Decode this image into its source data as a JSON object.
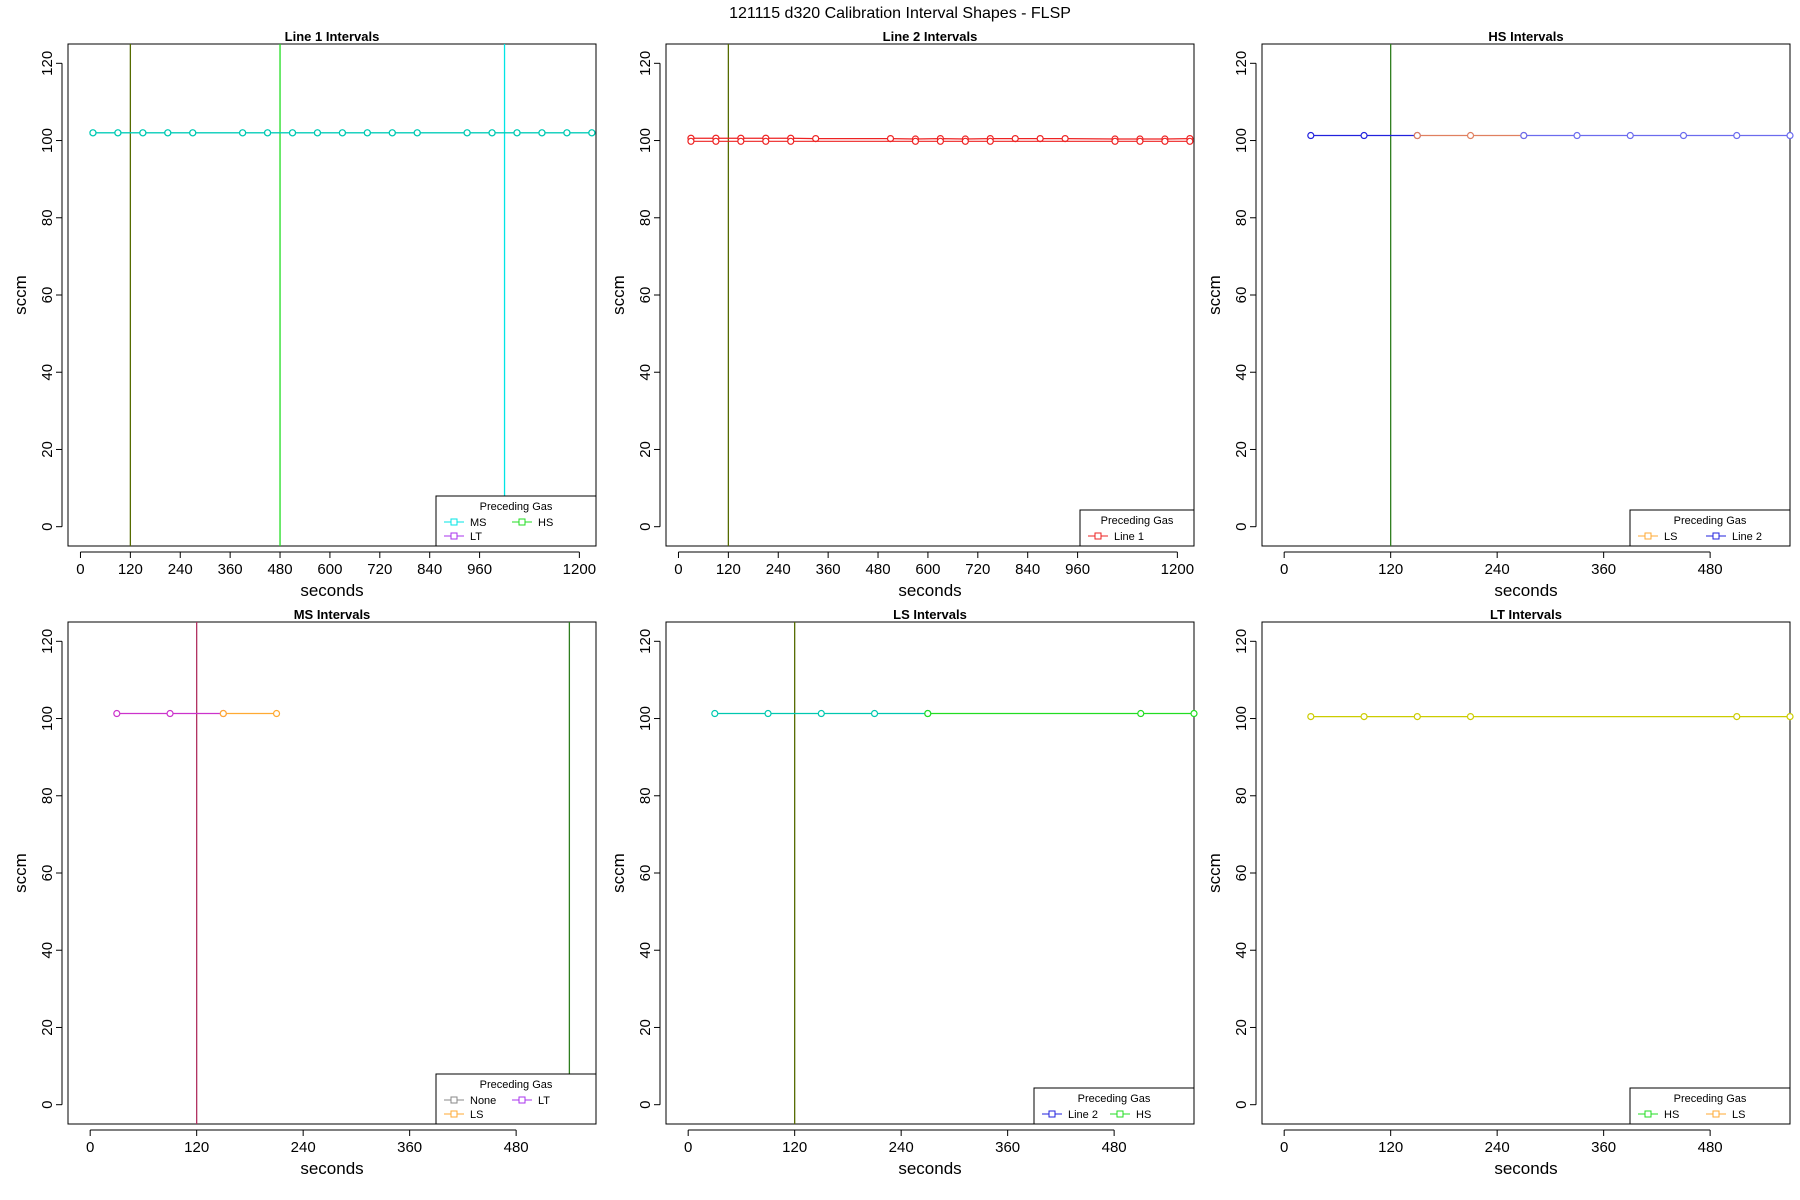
{
  "figure_title": "121115   d320   Calibration Interval Shapes - FLSP",
  "colors": {
    "cyan": "#00e5e5",
    "teal": "#00c8b0",
    "green": "#22dd22",
    "dkgreen": "#2e7d1e",
    "olive": "#556b00",
    "red": "#ee2222",
    "blue": "#2222dd",
    "ltblue": "#6b6bee",
    "orange": "#ffaa33",
    "magenta": "#cc33cc",
    "violet": "#aa33ee",
    "grey": "#888888",
    "yellow": "#cccc00",
    "mauve": "#b03060",
    "salmon": "#e08060"
  },
  "chart_data": [
    {
      "type": "line",
      "title": "Line 1 Intervals",
      "xlabel": "seconds",
      "ylabel": "sccm",
      "xlim": [
        -30,
        1240
      ],
      "ylim": [
        -5,
        125
      ],
      "xticks": [
        0,
        120,
        240,
        360,
        480,
        600,
        720,
        840,
        960,
        1200
      ],
      "yticks": [
        0,
        20,
        40,
        60,
        80,
        100,
        120
      ],
      "vlines": [
        {
          "x": 120,
          "color": "olive"
        },
        {
          "x": 480,
          "color": "green"
        },
        {
          "x": 1020,
          "color": "cyan"
        }
      ],
      "series": [
        {
          "name": "MS",
          "color": "cyan",
          "x": [
            30,
            90,
            150,
            210,
            270,
            390,
            450,
            510,
            570,
            630,
            690,
            750,
            810,
            930,
            990,
            1050,
            1110,
            1170,
            1230
          ],
          "y": [
            102,
            102,
            102,
            102,
            102,
            102,
            102,
            102,
            102,
            102,
            102,
            102,
            102,
            102,
            102,
            102,
            102,
            102,
            102
          ]
        },
        {
          "name": "HS",
          "color": "teal",
          "x": [
            30,
            90,
            150,
            210,
            270,
            390,
            450,
            510,
            570,
            630,
            690,
            750,
            810,
            930,
            990,
            1050,
            1110,
            1170,
            1230
          ],
          "y": [
            102,
            102,
            102,
            102,
            102,
            102,
            102,
            102,
            102,
            102,
            102,
            102,
            102,
            102,
            102,
            102,
            102,
            102,
            102
          ]
        }
      ],
      "legend": {
        "title": "Preceding Gas",
        "position": "bottom-right",
        "entries": [
          {
            "label": "MS",
            "color": "cyan"
          },
          {
            "label": "HS",
            "color": "green"
          },
          {
            "label": "LT",
            "color": "violet"
          }
        ]
      }
    },
    {
      "type": "line",
      "title": "Line 2 Intervals",
      "xlabel": "seconds",
      "ylabel": "sccm",
      "xlim": [
        -30,
        1240
      ],
      "ylim": [
        -5,
        125
      ],
      "xticks": [
        0,
        120,
        240,
        360,
        480,
        600,
        720,
        840,
        960,
        1200
      ],
      "yticks": [
        0,
        20,
        40,
        60,
        80,
        100,
        120
      ],
      "vlines": [
        {
          "x": 120,
          "color": "olive"
        }
      ],
      "series": [
        {
          "name": "Line 1",
          "color": "red",
          "x": [
            30,
            90,
            150,
            210,
            270,
            330,
            510,
            570,
            630,
            690,
            750,
            810,
            870,
            930,
            1050,
            1110,
            1170,
            1230
          ],
          "y": [
            100.6,
            100.6,
            100.6,
            100.6,
            100.6,
            100.5,
            100.5,
            100.4,
            100.5,
            100.4,
            100.5,
            100.5,
            100.5,
            100.5,
            100.4,
            100.4,
            100.4,
            100.5
          ]
        },
        {
          "name": "Line 1",
          "color": "red",
          "x": [
            30,
            90,
            150,
            210,
            270,
            570,
            630,
            690,
            750,
            1050,
            1110,
            1170,
            1230
          ],
          "y": [
            99.8,
            99.8,
            99.8,
            99.8,
            99.8,
            99.8,
            99.8,
            99.8,
            99.8,
            99.8,
            99.8,
            99.8,
            99.8
          ]
        }
      ],
      "legend": {
        "title": "Preceding Gas",
        "position": "bottom-right",
        "entries": [
          {
            "label": "Line 1",
            "color": "red"
          }
        ]
      }
    },
    {
      "type": "line",
      "title": "HS Intervals",
      "xlabel": "seconds",
      "ylabel": "sccm",
      "xlim": [
        -25,
        570
      ],
      "ylim": [
        -5,
        125
      ],
      "xticks": [
        0,
        120,
        240,
        360,
        480
      ],
      "yticks": [
        0,
        20,
        40,
        60,
        80,
        100,
        120
      ],
      "vlines": [
        {
          "x": 120,
          "color": "dkgreen"
        }
      ],
      "series": [
        {
          "name": "Line 2",
          "color": "blue",
          "x": [
            30,
            90,
            150
          ],
          "y": [
            101.3,
            101.3,
            101.3
          ]
        },
        {
          "name": "LS",
          "color": "salmon",
          "x": [
            150,
            210,
            270
          ],
          "y": [
            101.3,
            101.3,
            101.3
          ]
        },
        {
          "name": "Line 2",
          "color": "ltblue",
          "x": [
            270,
            330,
            390,
            450,
            510,
            570
          ],
          "y": [
            101.3,
            101.3,
            101.3,
            101.3,
            101.3,
            101.3
          ]
        }
      ],
      "legend": {
        "title": "Preceding Gas",
        "position": "bottom-right",
        "entries": [
          {
            "label": "LS",
            "color": "orange"
          },
          {
            "label": "Line 2",
            "color": "blue"
          }
        ]
      }
    },
    {
      "type": "line",
      "title": "MS Intervals",
      "xlabel": "seconds",
      "ylabel": "sccm",
      "xlim": [
        -25,
        570
      ],
      "ylim": [
        -5,
        125
      ],
      "xticks": [
        0,
        120,
        240,
        360,
        480
      ],
      "yticks": [
        0,
        20,
        40,
        60,
        80,
        100,
        120
      ],
      "vlines": [
        {
          "x": 120,
          "color": "mauve"
        },
        {
          "x": 540,
          "color": "dkgreen"
        }
      ],
      "series": [
        {
          "name": "LT",
          "color": "magenta",
          "x": [
            30,
            90,
            150
          ],
          "y": [
            101.3,
            101.3,
            101.3
          ]
        },
        {
          "name": "LS",
          "color": "orange",
          "x": [
            150,
            210
          ],
          "y": [
            101.3,
            101.3
          ]
        }
      ],
      "legend": {
        "title": "Preceding Gas",
        "position": "bottom-right",
        "entries": [
          {
            "label": "None",
            "color": "grey"
          },
          {
            "label": "LT",
            "color": "violet"
          },
          {
            "label": "LS",
            "color": "orange"
          }
        ]
      }
    },
    {
      "type": "line",
      "title": "LS Intervals",
      "xlabel": "seconds",
      "ylabel": "sccm",
      "xlim": [
        -25,
        570
      ],
      "ylim": [
        -5,
        125
      ],
      "xticks": [
        0,
        120,
        240,
        360,
        480
      ],
      "yticks": [
        0,
        20,
        40,
        60,
        80,
        100,
        120
      ],
      "vlines": [
        {
          "x": 120,
          "color": "olive"
        }
      ],
      "series": [
        {
          "name": "Line 2",
          "color": "teal",
          "x": [
            30,
            90,
            150,
            210,
            270
          ],
          "y": [
            101.3,
            101.3,
            101.3,
            101.3,
            101.3
          ]
        },
        {
          "name": "HS",
          "color": "green",
          "x": [
            270,
            510,
            570
          ],
          "y": [
            101.3,
            101.3,
            101.3
          ]
        }
      ],
      "legend": {
        "title": "Preceding Gas",
        "position": "bottom-right",
        "entries": [
          {
            "label": "Line 2",
            "color": "blue"
          },
          {
            "label": "HS",
            "color": "green"
          }
        ]
      }
    },
    {
      "type": "line",
      "title": "LT Intervals",
      "xlabel": "seconds",
      "ylabel": "sccm",
      "xlim": [
        -25,
        570
      ],
      "ylim": [
        -5,
        125
      ],
      "xticks": [
        0,
        120,
        240,
        360,
        480
      ],
      "yticks": [
        0,
        20,
        40,
        60,
        80,
        100,
        120
      ],
      "vlines": [],
      "series": [
        {
          "name": "LS",
          "color": "yellow",
          "x": [
            30,
            90,
            150,
            210,
            510,
            570
          ],
          "y": [
            100.5,
            100.5,
            100.5,
            100.5,
            100.5,
            100.5
          ]
        }
      ],
      "legend": {
        "title": "Preceding Gas",
        "position": "bottom-right",
        "entries": [
          {
            "label": "HS",
            "color": "green"
          },
          {
            "label": "LS",
            "color": "orange"
          }
        ]
      }
    }
  ]
}
